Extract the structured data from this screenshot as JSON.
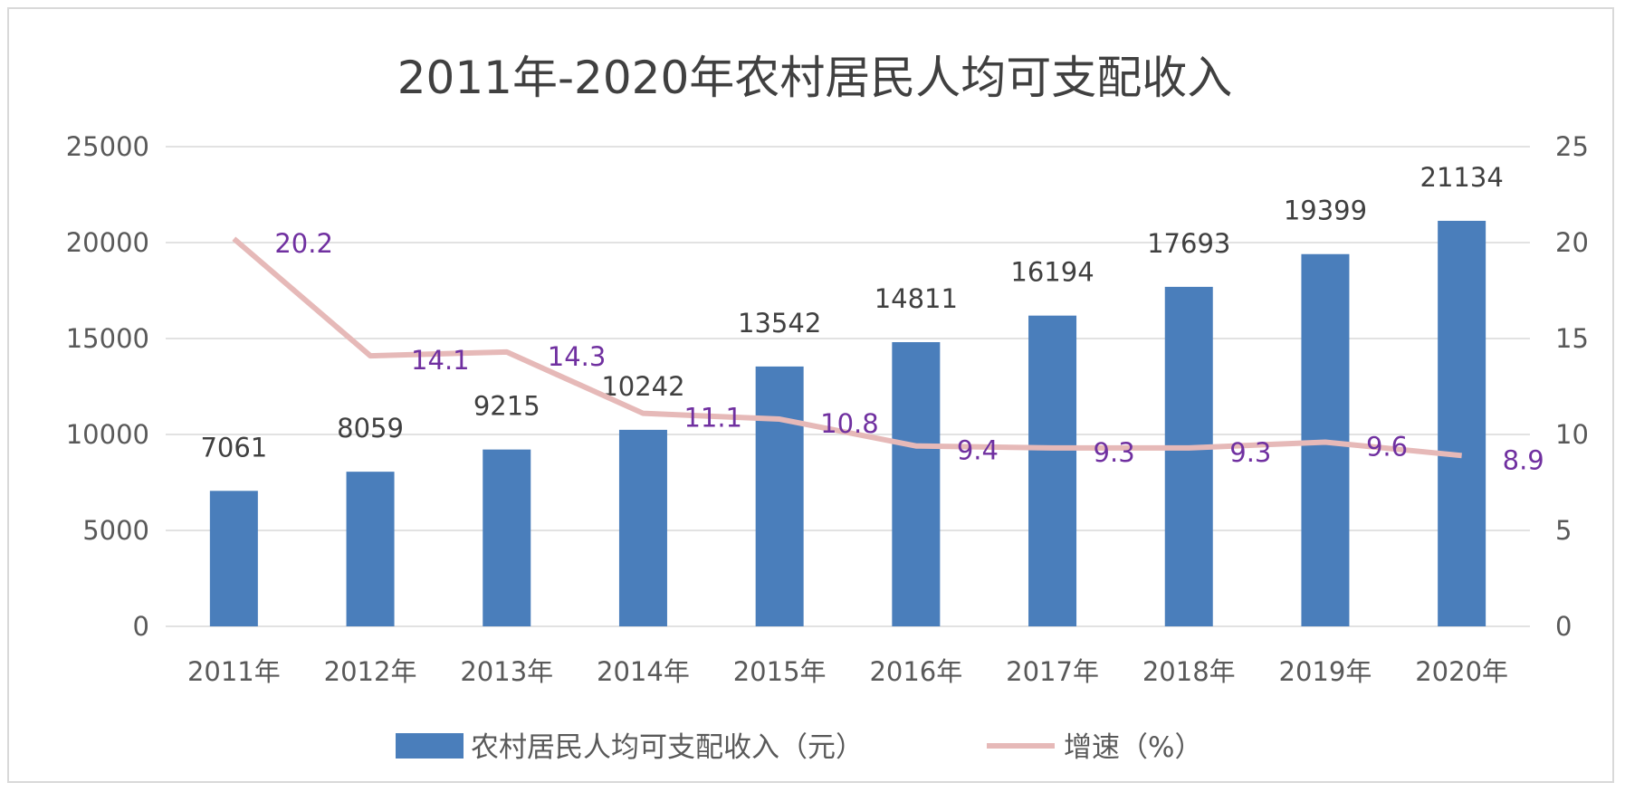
{
  "chart_data": {
    "type": "bar",
    "title": "2011年-2020年农村居民人均可支配收入",
    "categories": [
      "2011年",
      "2012年",
      "2013年",
      "2014年",
      "2015年",
      "2016年",
      "2017年",
      "2018年",
      "2019年",
      "2020年"
    ],
    "series": [
      {
        "name": "农村居民人均可支配收入（元）",
        "type": "bar",
        "axis": "left",
        "values": [
          7061,
          8059,
          9215,
          10242,
          13542,
          14811,
          16194,
          17693,
          19399,
          21134
        ],
        "labels": [
          "7061",
          "8059",
          "9215",
          "10242",
          "13542",
          "14811",
          "16194",
          "17693",
          "19399",
          "21134"
        ],
        "color": "#4a7ebb"
      },
      {
        "name": "增速（%）",
        "type": "line",
        "axis": "right",
        "values": [
          20.2,
          14.1,
          14.3,
          11.1,
          10.8,
          9.4,
          9.3,
          9.3,
          9.6,
          8.9
        ],
        "labels": [
          "20.2",
          "14.1",
          "14.3",
          "11.1",
          "10.8",
          "9.4",
          "9.3",
          "9.3",
          "9.6",
          "8.9"
        ],
        "color": "#e6b9b8"
      }
    ],
    "y_left": {
      "ylim": [
        0,
        25000
      ],
      "ticks": [
        "0",
        "5000",
        "10000",
        "15000",
        "20000",
        "25000"
      ]
    },
    "y_right": {
      "ylim": [
        0,
        25
      ],
      "ticks": [
        "0",
        "5",
        "10",
        "15",
        "20",
        "25"
      ]
    },
    "grid": true,
    "legend_position": "bottom",
    "label_color": "#7030a0"
  }
}
